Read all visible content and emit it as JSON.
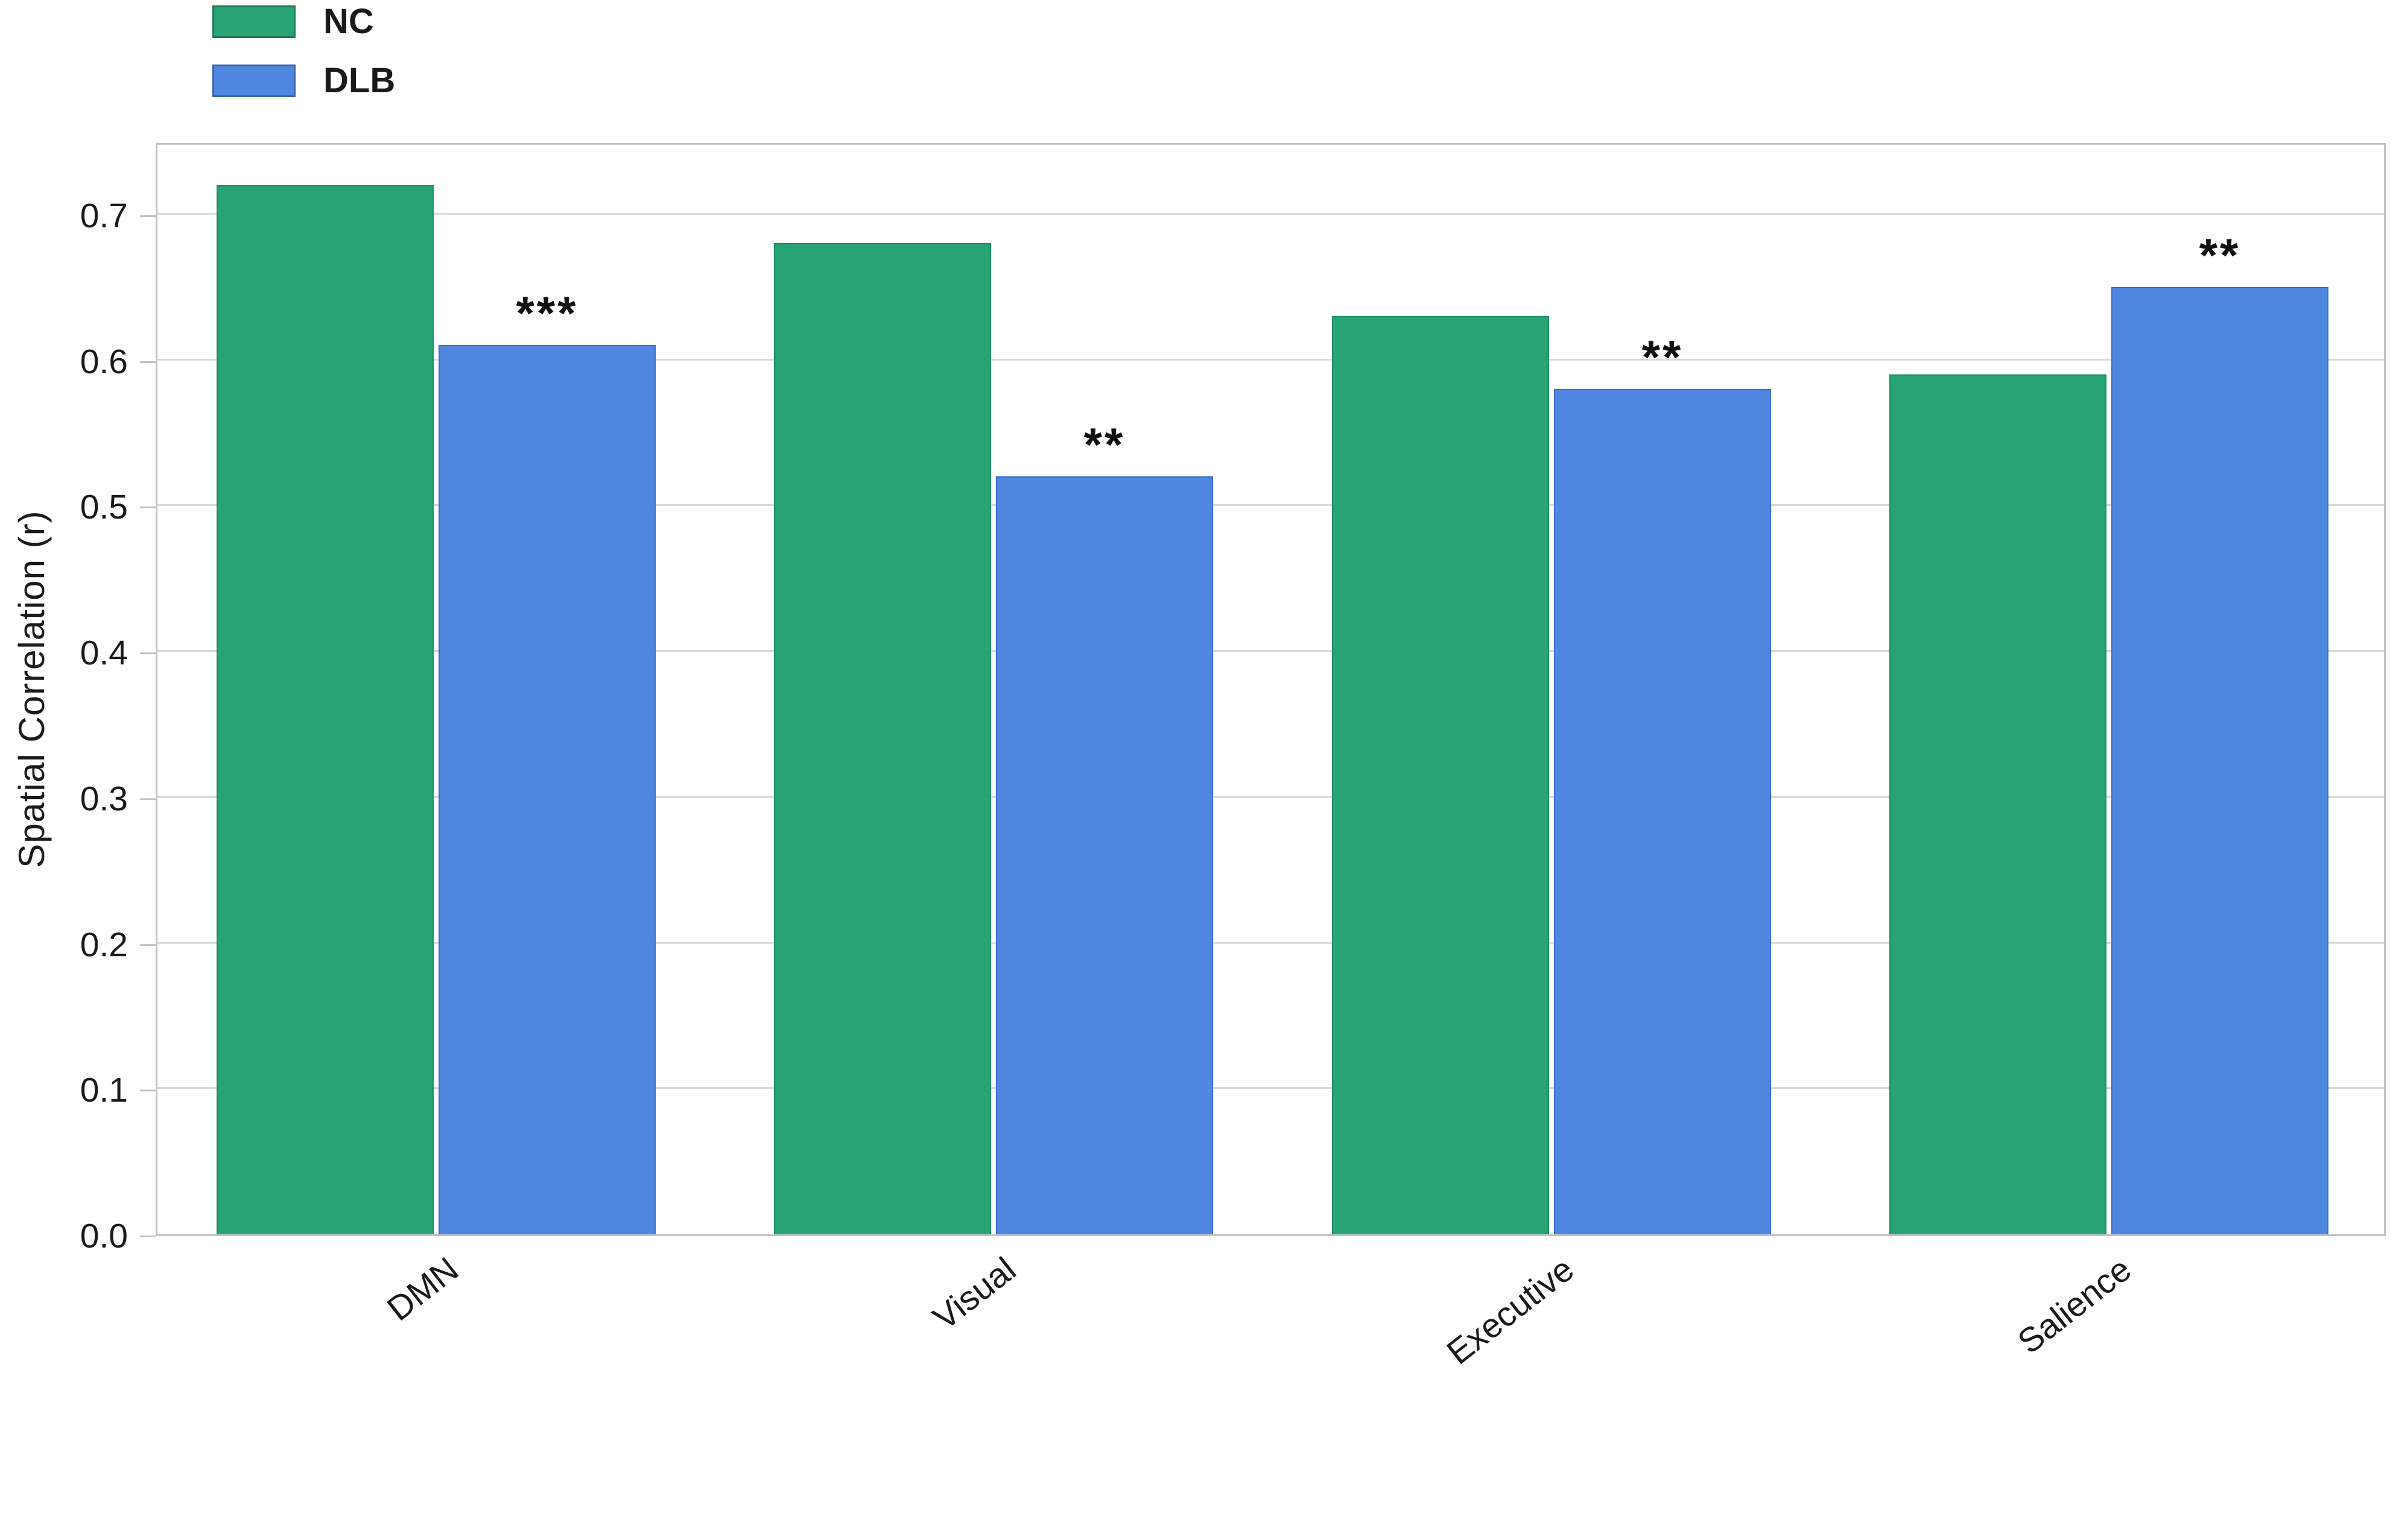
{
  "chart_data": {
    "type": "bar",
    "title": "",
    "xlabel": "",
    "ylabel": "Spatial Correlation (r)",
    "categories": [
      "DMN",
      "Visual",
      "Executive",
      "Salience"
    ],
    "series": [
      {
        "name": "NC",
        "color": "#27a374",
        "edge_color": "#1d8f62",
        "values": [
          0.72,
          0.68,
          0.63,
          0.59
        ]
      },
      {
        "name": "DLB",
        "color": "#4f86e0",
        "edge_color": "#3a6cd4",
        "values": [
          0.61,
          0.52,
          0.58,
          0.65
        ]
      }
    ],
    "significance_markers": {
      "series": "DLB",
      "labels": [
        "***",
        "**",
        "**",
        "**"
      ]
    },
    "ylim": [
      0.0,
      0.75
    ],
    "yticks": [
      0.0,
      0.1,
      0.2,
      0.3,
      0.4,
      0.5,
      0.6,
      0.7
    ],
    "ytick_labels": [
      "0.0",
      "0.1",
      "0.2",
      "0.3",
      "0.4",
      "0.5",
      "0.6",
      "0.7"
    ],
    "grid": true,
    "legend_position": "top-left",
    "colors": {
      "grid": "#d9d9d9",
      "frame": "#c2c2c2",
      "text": "#1a1a1a",
      "background": "#ffffff"
    }
  },
  "legend": {
    "items": [
      {
        "label": "NC",
        "color": "#27a374"
      },
      {
        "label": "DLB",
        "color": "#4f86e0"
      }
    ]
  }
}
